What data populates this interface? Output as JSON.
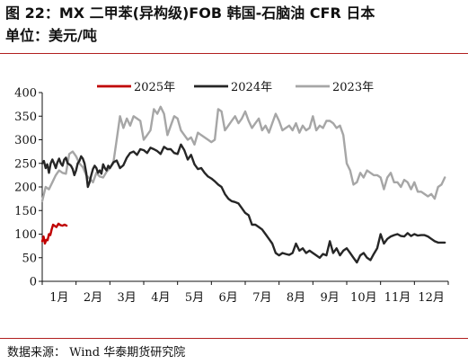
{
  "title_line1": "图 22：MX 二甲苯(异构级)FOB 韩国-石脑油 CFR 日本",
  "title_line2": "单位：美元/吨",
  "source": "数据来源： Wind  华泰期货研究院",
  "colors": {
    "rule": "#b11f1f"
  },
  "chart_data": {
    "type": "line",
    "title": "",
    "xlabel": "",
    "ylabel": "",
    "ylim": [
      0,
      400
    ],
    "yticks": [
      "0",
      "50",
      "100",
      "150",
      "200",
      "250",
      "300",
      "350",
      "400"
    ],
    "xlim": [
      1,
      13
    ],
    "xticks": [
      "1月",
      "2月",
      "3月",
      "4月",
      "5月",
      "6月",
      "7月",
      "8月",
      "9月",
      "10月",
      "11月",
      "12月"
    ],
    "grid": false,
    "legend": "top",
    "series": [
      {
        "name": "2025年",
        "color": "#c00000",
        "x": [
          1.0,
          1.04,
          1.08,
          1.12,
          1.16,
          1.2,
          1.24,
          1.28,
          1.32,
          1.36,
          1.42,
          1.48,
          1.54,
          1.6,
          1.66,
          1.72
        ],
        "y": [
          85,
          95,
          80,
          88,
          87,
          100,
          98,
          110,
          120,
          118,
          115,
          122,
          119,
          118,
          120,
          118
        ]
      },
      {
        "name": "2024年",
        "color": "#262626",
        "x": [
          1.0,
          1.05,
          1.1,
          1.15,
          1.2,
          1.25,
          1.3,
          1.35,
          1.4,
          1.45,
          1.5,
          1.55,
          1.6,
          1.65,
          1.7,
          1.75,
          1.8,
          1.85,
          1.9,
          1.95,
          2.0,
          2.05,
          2.1,
          2.15,
          2.2,
          2.25,
          2.3,
          2.35,
          2.4,
          2.45,
          2.5,
          2.55,
          2.6,
          2.65,
          2.7,
          2.75,
          2.8,
          2.85,
          2.9,
          2.95,
          3.0,
          3.1,
          3.2,
          3.3,
          3.4,
          3.5,
          3.6,
          3.7,
          3.8,
          3.9,
          4.0,
          4.1,
          4.2,
          4.3,
          4.4,
          4.5,
          4.6,
          4.7,
          4.8,
          4.9,
          5.0,
          5.1,
          5.2,
          5.3,
          5.4,
          5.5,
          5.6,
          5.7,
          5.8,
          5.9,
          6.0,
          6.1,
          6.2,
          6.3,
          6.4,
          6.5,
          6.6,
          6.7,
          6.8,
          6.9,
          7.0,
          7.1,
          7.2,
          7.3,
          7.4,
          7.5,
          7.6,
          7.7,
          7.8,
          7.9,
          8.0,
          8.1,
          8.2,
          8.3,
          8.4,
          8.5,
          8.6,
          8.7,
          8.8,
          8.9,
          9.0,
          9.1,
          9.2,
          9.3,
          9.4,
          9.5,
          9.6,
          9.7,
          9.8,
          9.9,
          10.0,
          10.1,
          10.2,
          10.3,
          10.4,
          10.5,
          10.6,
          10.7,
          10.8,
          10.9,
          11.0,
          11.1,
          11.2,
          11.3,
          11.4,
          11.5,
          11.6,
          11.7,
          11.8,
          11.9,
          12.0,
          12.1,
          12.2,
          12.3,
          12.4,
          12.5,
          12.6,
          12.7,
          12.8,
          12.9
        ],
        "y": [
          250,
          255,
          240,
          248,
          230,
          250,
          258,
          250,
          240,
          252,
          260,
          250,
          245,
          258,
          262,
          250,
          248,
          245,
          238,
          225,
          235,
          250,
          255,
          265,
          260,
          250,
          230,
          200,
          210,
          225,
          238,
          245,
          240,
          230,
          235,
          228,
          248,
          240,
          235,
          245,
          240,
          252,
          256,
          240,
          246,
          262,
          272,
          275,
          268,
          280,
          278,
          272,
          283,
          280,
          276,
          270,
          285,
          280,
          280,
          272,
          270,
          290,
          278,
          258,
          268,
          248,
          238,
          240,
          230,
          222,
          218,
          212,
          205,
          200,
          185,
          175,
          170,
          168,
          165,
          155,
          145,
          140,
          120,
          120,
          115,
          110,
          100,
          90,
          80,
          60,
          55,
          60,
          58,
          56,
          60,
          80,
          65,
          70,
          60,
          65,
          60,
          55,
          50,
          58,
          55,
          85,
          60,
          70,
          55,
          65,
          70,
          60,
          50,
          40,
          55,
          60,
          50,
          45,
          58,
          70,
          100,
          80,
          90,
          95,
          98,
          100,
          96,
          95,
          102,
          96,
          100,
          97,
          98,
          98,
          95,
          90,
          85,
          82,
          82,
          82
        ]
      },
      {
        "name": "2023年",
        "color": "#a6a6a6",
        "x": [
          1.0,
          1.1,
          1.2,
          1.3,
          1.4,
          1.5,
          1.6,
          1.7,
          1.8,
          1.9,
          2.0,
          2.1,
          2.2,
          2.3,
          2.4,
          2.5,
          2.6,
          2.7,
          2.8,
          2.9,
          3.0,
          3.1,
          3.2,
          3.3,
          3.4,
          3.5,
          3.6,
          3.7,
          3.8,
          3.9,
          4.0,
          4.1,
          4.2,
          4.3,
          4.4,
          4.5,
          4.6,
          4.7,
          4.8,
          4.9,
          5.0,
          5.1,
          5.2,
          5.3,
          5.4,
          5.5,
          5.6,
          5.7,
          5.8,
          5.9,
          6.0,
          6.1,
          6.2,
          6.3,
          6.4,
          6.5,
          6.6,
          6.7,
          6.8,
          6.9,
          7.0,
          7.1,
          7.2,
          7.3,
          7.4,
          7.5,
          7.6,
          7.7,
          7.8,
          7.9,
          8.0,
          8.1,
          8.2,
          8.3,
          8.4,
          8.5,
          8.6,
          8.7,
          8.8,
          8.9,
          9.0,
          9.1,
          9.2,
          9.3,
          9.4,
          9.5,
          9.6,
          9.7,
          9.8,
          9.9,
          10.0,
          10.1,
          10.2,
          10.3,
          10.4,
          10.5,
          10.6,
          10.7,
          10.8,
          10.9,
          11.0,
          11.1,
          11.2,
          11.3,
          11.4,
          11.5,
          11.6,
          11.7,
          11.8,
          11.9,
          12.0,
          12.1,
          12.2,
          12.3,
          12.4,
          12.5,
          12.6,
          12.7,
          12.8,
          12.9
        ],
        "y": [
          170,
          200,
          195,
          210,
          225,
          235,
          230,
          228,
          270,
          275,
          265,
          250,
          242,
          225,
          218,
          210,
          230,
          222,
          220,
          232,
          240,
          250,
          300,
          350,
          325,
          345,
          330,
          350,
          345,
          340,
          300,
          310,
          320,
          365,
          355,
          370,
          355,
          310,
          330,
          350,
          345,
          320,
          310,
          300,
          305,
          290,
          315,
          310,
          305,
          300,
          295,
          300,
          365,
          360,
          320,
          330,
          340,
          350,
          335,
          345,
          360,
          340,
          325,
          335,
          345,
          320,
          330,
          315,
          335,
          355,
          340,
          320,
          325,
          330,
          320,
          335,
          315,
          330,
          320,
          325,
          350,
          320,
          330,
          325,
          340,
          340,
          335,
          325,
          330,
          310,
          250,
          235,
          205,
          210,
          230,
          220,
          235,
          230,
          225,
          225,
          220,
          195,
          220,
          230,
          210,
          210,
          200,
          215,
          210,
          195,
          210,
          190,
          190,
          185,
          180,
          185,
          175,
          200,
          205,
          220
        ]
      }
    ]
  }
}
